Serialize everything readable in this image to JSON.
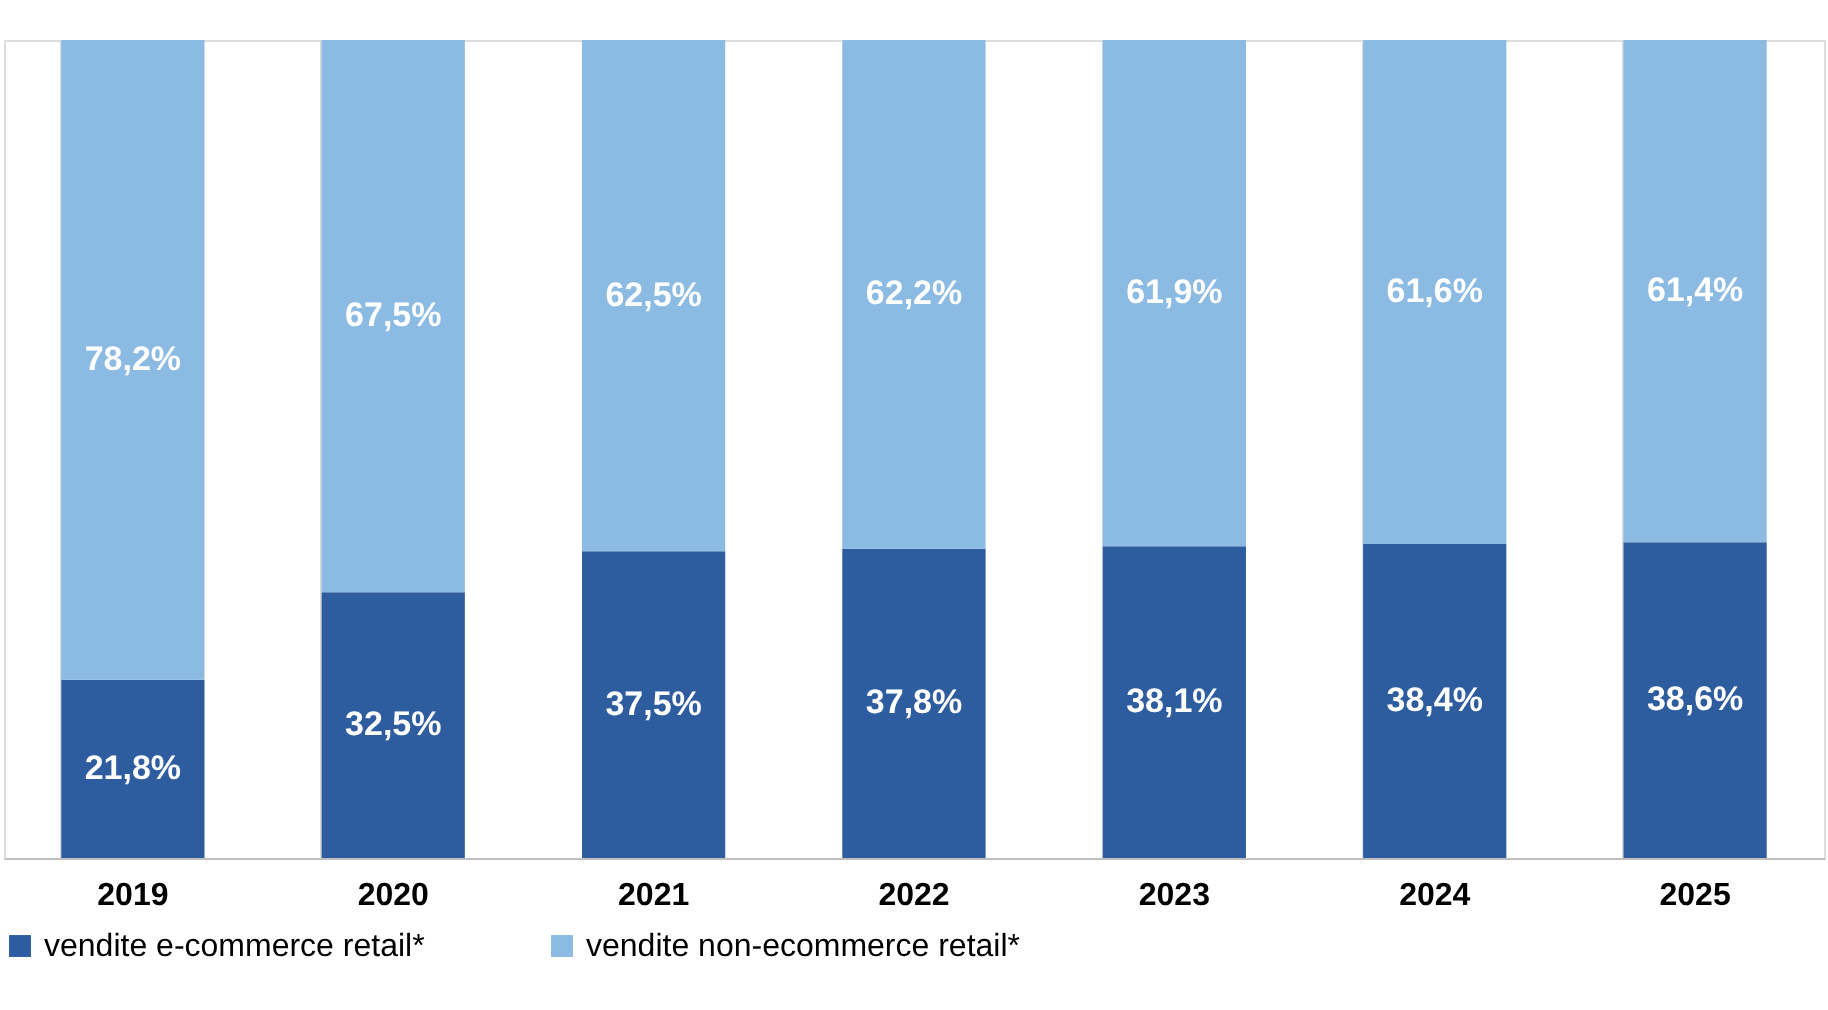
{
  "chart_data": {
    "type": "bar",
    "stacked": true,
    "categories": [
      "2019",
      "2020",
      "2021",
      "2022",
      "2023",
      "2024",
      "2025"
    ],
    "series": [
      {
        "name": "vendite e-commerce retail*",
        "color": "#2e5d9f",
        "values": [
          21.8,
          32.5,
          37.5,
          37.8,
          38.1,
          38.4,
          38.6
        ],
        "value_labels": [
          "21,8%",
          "32,5%",
          "37,5%",
          "37,8%",
          "38,1%",
          "38,4%",
          "38,6%"
        ]
      },
      {
        "name": "vendite non-ecommerce retail*",
        "color": "#8bbbe2",
        "values": [
          78.2,
          67.5,
          62.5,
          62.2,
          61.9,
          61.6,
          61.4
        ],
        "value_labels": [
          "78,2%",
          "67,5%",
          "62,5%",
          "62,2%",
          "61,9%",
          "61,6%",
          "61,4%"
        ]
      }
    ],
    "ylim": [
      0,
      100
    ],
    "tick_labels": "x",
    "grid": "x",
    "legend": "bottom"
  }
}
